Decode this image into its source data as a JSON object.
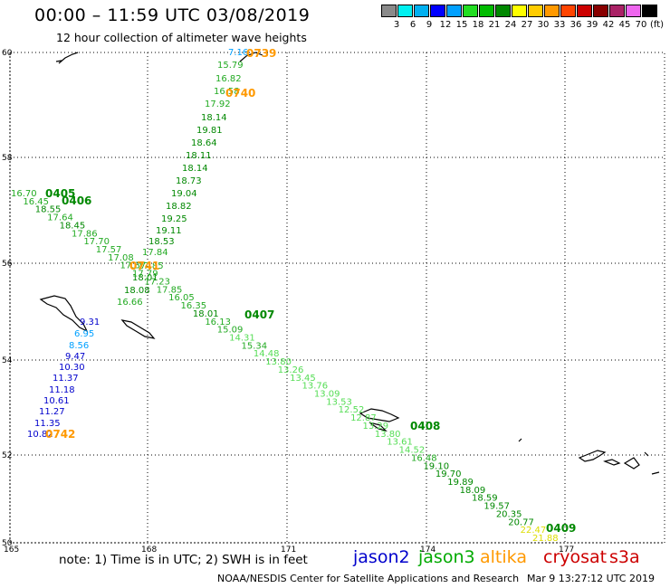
{
  "header": {
    "title": "00:00 – 11:59 UTC 03/08/2019",
    "subtitle": "12 hour collection of altimeter wave heights"
  },
  "colorbar": {
    "unit": "(ft)",
    "bins": [
      {
        "label": "",
        "color": "#8a8a8a"
      },
      {
        "label": "3",
        "color": "#00f0f0"
      },
      {
        "label": "6",
        "color": "#00b0f0"
      },
      {
        "label": "9",
        "color": "#0000ff"
      },
      {
        "label": "12",
        "color": "#00a0ff"
      },
      {
        "label": "15",
        "color": "#22dd22"
      },
      {
        "label": "18",
        "color": "#00bb00"
      },
      {
        "label": "21",
        "color": "#008800"
      },
      {
        "label": "24",
        "color": "#ffff00"
      },
      {
        "label": "27",
        "color": "#ffcc00"
      },
      {
        "label": "30",
        "color": "#ff9900"
      },
      {
        "label": "33",
        "color": "#ff4400"
      },
      {
        "label": "36",
        "color": "#cc0000"
      },
      {
        "label": "39",
        "color": "#880000"
      },
      {
        "label": "42",
        "color": "#aa2266"
      },
      {
        "label": "45",
        "color": "#ee66ee"
      },
      {
        "label": "70",
        "color": "#000000"
      }
    ]
  },
  "map": {
    "lat_labels": [
      "60",
      "58",
      "56",
      "54",
      "52",
      "50"
    ],
    "lon_labels": [
      "165",
      "168",
      "171",
      "174",
      "177"
    ],
    "time_labels": [
      {
        "text": "0739",
        "sat": "altika"
      },
      {
        "text": "0740",
        "sat": "altika"
      },
      {
        "text": "0405",
        "sat": "jason3"
      },
      {
        "text": "0406",
        "sat": "jason3"
      },
      {
        "text": "0741",
        "sat": "altika"
      },
      {
        "text": "0407",
        "sat": "jason3"
      },
      {
        "text": "0742",
        "sat": "altika"
      },
      {
        "text": "0408",
        "sat": "jason3"
      },
      {
        "text": "0409",
        "sat": "jason3"
      }
    ],
    "tracks": [
      {
        "name": "altika-track",
        "points": [
          "7.16",
          "15.79",
          "16.82",
          "16.58",
          "17.92",
          "18.14",
          "19.81",
          "18.64",
          "18.11",
          "18.14",
          "18.73",
          "19.04",
          "18.82",
          "19.25",
          "19.11",
          "18.53",
          "17.84",
          "17.85",
          "18.01",
          "18.08",
          "16.66",
          "9.31",
          "6.95",
          "8.56",
          "9.47",
          "10.30",
          "11.37",
          "11.18",
          "10.61",
          "11.27",
          "11.35",
          "10.82"
        ]
      },
      {
        "name": "jason3-track",
        "points": [
          "16.70",
          "16.45",
          "18.55",
          "17.64",
          "18.45",
          "17.86",
          "17.70",
          "17.57",
          "17.08",
          "17.37",
          "17.79",
          "17.23",
          "17.85",
          "16.05",
          "16.35",
          "18.01",
          "16.13",
          "15.09",
          "14.31",
          "15.34",
          "14.48",
          "13.80",
          "13.26",
          "13.45",
          "13.76",
          "13.09",
          "13.53",
          "12.52",
          "12.87",
          "13.29",
          "13.80",
          "13.61",
          "14.52",
          "16.48",
          "19.10",
          "19.70",
          "19.89",
          "18.09",
          "18.59",
          "19.57",
          "20.35",
          "20.77",
          "22.47",
          "21.88"
        ]
      }
    ]
  },
  "footer": {
    "note": "note: 1) Time is in UTC; 2) SWH is in feet",
    "satellites": [
      {
        "name": "jason2",
        "color": "#0000cc"
      },
      {
        "name": "jason3",
        "color": "#00aa00"
      },
      {
        "name": "altika",
        "color": "#ff9900"
      },
      {
        "name": "cryosat",
        "color": "#cc0000"
      },
      {
        "name": "s3a",
        "color": "#cc0000"
      }
    ],
    "credit": "NOAA/NESDIS Center for Satellite Applications and Research",
    "timestamp": "Mar  9 13:27:12 UTC 2019"
  }
}
